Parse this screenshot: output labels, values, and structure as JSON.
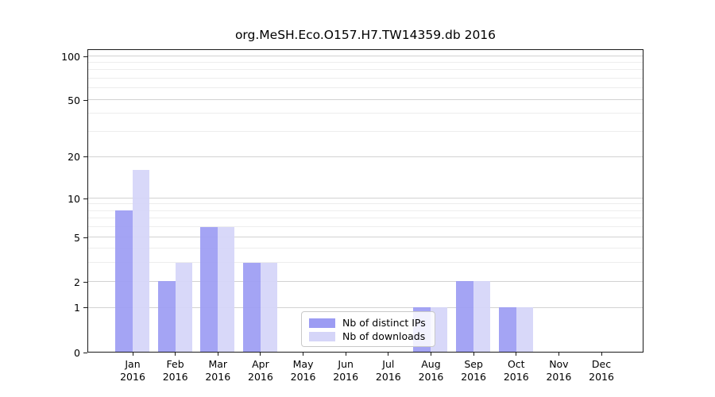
{
  "chart_data": {
    "type": "bar",
    "title": "org.MeSH.Eco.O157.H7.TW14359.db 2016",
    "year": "2016",
    "categories": [
      "Jan",
      "Feb",
      "Mar",
      "Apr",
      "May",
      "Jun",
      "Jul",
      "Aug",
      "Sep",
      "Oct",
      "Nov",
      "Dec"
    ],
    "series": [
      {
        "name": "Nb of distinct IPs",
        "color": "#9c9cf3",
        "values": [
          8,
          2,
          6,
          3,
          0,
          0,
          0,
          1,
          2,
          1,
          0,
          0
        ]
      },
      {
        "name": "Nb of downloads",
        "color": "#d5d5f8",
        "values": [
          16,
          3,
          6,
          3,
          0,
          0,
          0,
          1,
          2,
          1,
          0,
          0
        ]
      }
    ],
    "scale": "log1p",
    "ylim": [
      0,
      112
    ],
    "y_major_ticks": [
      0,
      1,
      2,
      5,
      10,
      20,
      50,
      100
    ],
    "y_minor_gridlines": [
      3,
      4,
      6,
      7,
      8,
      9,
      30,
      40,
      60,
      70,
      80,
      90
    ],
    "grid": "horizontal",
    "legend_position": "inside-bottom-center",
    "xlabel": "",
    "ylabel": ""
  }
}
